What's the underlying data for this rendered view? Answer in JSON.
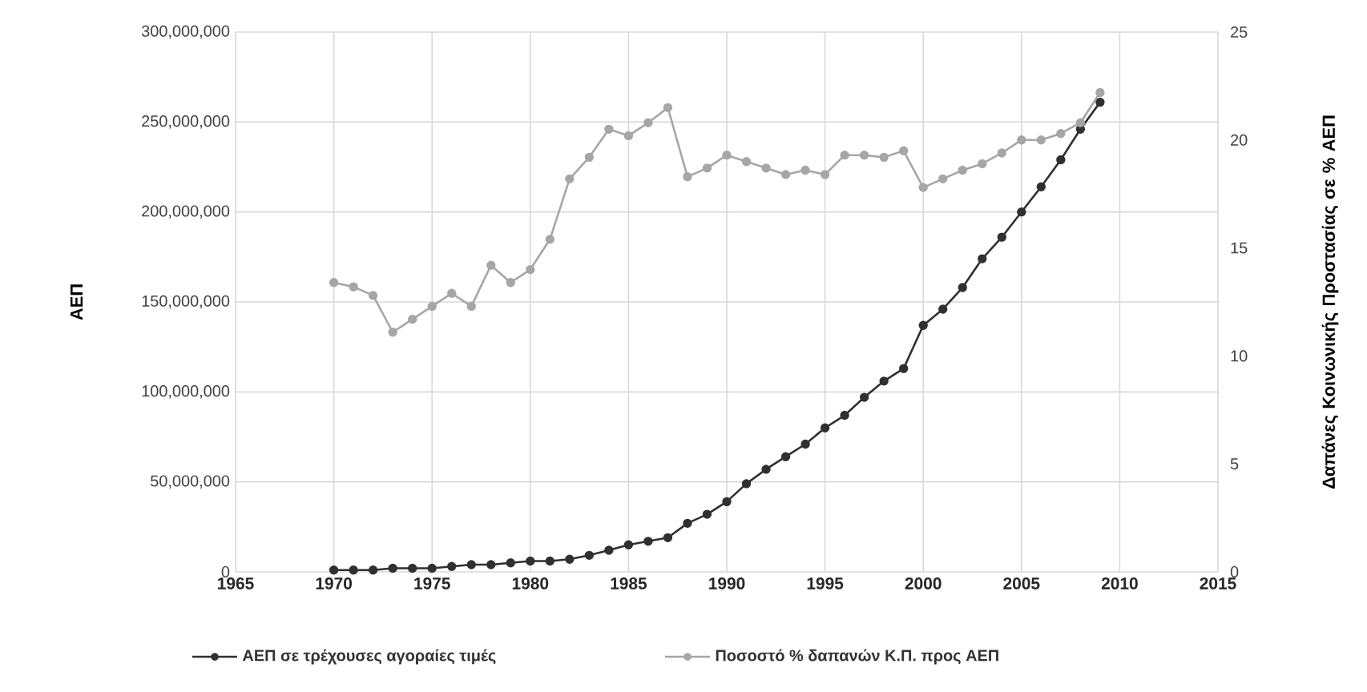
{
  "chart_data": {
    "type": "line",
    "xlabel": null,
    "ylabel": "ΑΕΠ",
    "y2label": "Δαπάνες Κοινωνικής Προστασίας σε % ΑΕΠ",
    "x": [
      1970,
      1971,
      1972,
      1973,
      1974,
      1975,
      1976,
      1977,
      1978,
      1979,
      1980,
      1981,
      1982,
      1983,
      1984,
      1985,
      1986,
      1987,
      1988,
      1989,
      1990,
      1991,
      1992,
      1993,
      1994,
      1995,
      1996,
      1997,
      1998,
      1999,
      2000,
      2001,
      2002,
      2003,
      2004,
      2005,
      2006,
      2007,
      2008,
      2009
    ],
    "series": [
      {
        "name": "ΑΕΠ σε τρέχουσες αγοραίες τιμές",
        "color": "#303030",
        "values": [
          1000000,
          1000000,
          1000000,
          2000000,
          2000000,
          2000000,
          3000000,
          4000000,
          4000000,
          5000000,
          6000000,
          6000000,
          7000000,
          9200000,
          12000000,
          15000000,
          17000000,
          19000000,
          27000000,
          32000000,
          39000000,
          49000000,
          57000000,
          64000000,
          71000000,
          80000000,
          87000000,
          97000000,
          106000000,
          113000000,
          137000000,
          146000000,
          158000000,
          174000000,
          186000000,
          200000000,
          214000000,
          229000000,
          246000000,
          261000000
        ]
      },
      {
        "name": "Ποσοστό % δαπανών Κ.Π. προς ΑΕΠ",
        "color": "#a6a6a6",
        "axis": "y2",
        "values": [
          13.4,
          13.2,
          12.8,
          11.1,
          11.7,
          12.3,
          12.9,
          12.3,
          14.2,
          13.4,
          14.0,
          15.4,
          18.2,
          19.2,
          20.5,
          20.2,
          20.8,
          21.5,
          18.3,
          18.7,
          19.3,
          19.0,
          18.7,
          18.4,
          18.6,
          18.4,
          19.3,
          19.3,
          19.2,
          19.5,
          17.8,
          18.2,
          18.6,
          18.9,
          19.4,
          20.0,
          20.0,
          20.3,
          20.8,
          22.2
        ]
      }
    ],
    "xlim": [
      1965,
      2015
    ],
    "xticks": [
      1965,
      1970,
      1975,
      1980,
      1985,
      1990,
      1995,
      2000,
      2005,
      2010,
      2015
    ],
    "ylim": [
      0,
      300000000
    ],
    "yticks": [
      0,
      {
        "value": 50000000,
        "label": "50,000,000"
      },
      {
        "value": 100000000,
        "label": "100,000,000"
      },
      {
        "value": 150000000,
        "label": "150,000,000"
      },
      {
        "value": 200000000,
        "label": "200,000,000"
      },
      {
        "value": 250000000,
        "label": "250,000,000"
      },
      {
        "value": 300000000,
        "label": "300,000,000"
      }
    ],
    "y2lim": [
      0,
      25
    ],
    "y2ticks": [
      0,
      5,
      10,
      15,
      20,
      25
    ],
    "grid": true,
    "legend": "bottom",
    "marker": "circle",
    "line_style": "solid"
  }
}
